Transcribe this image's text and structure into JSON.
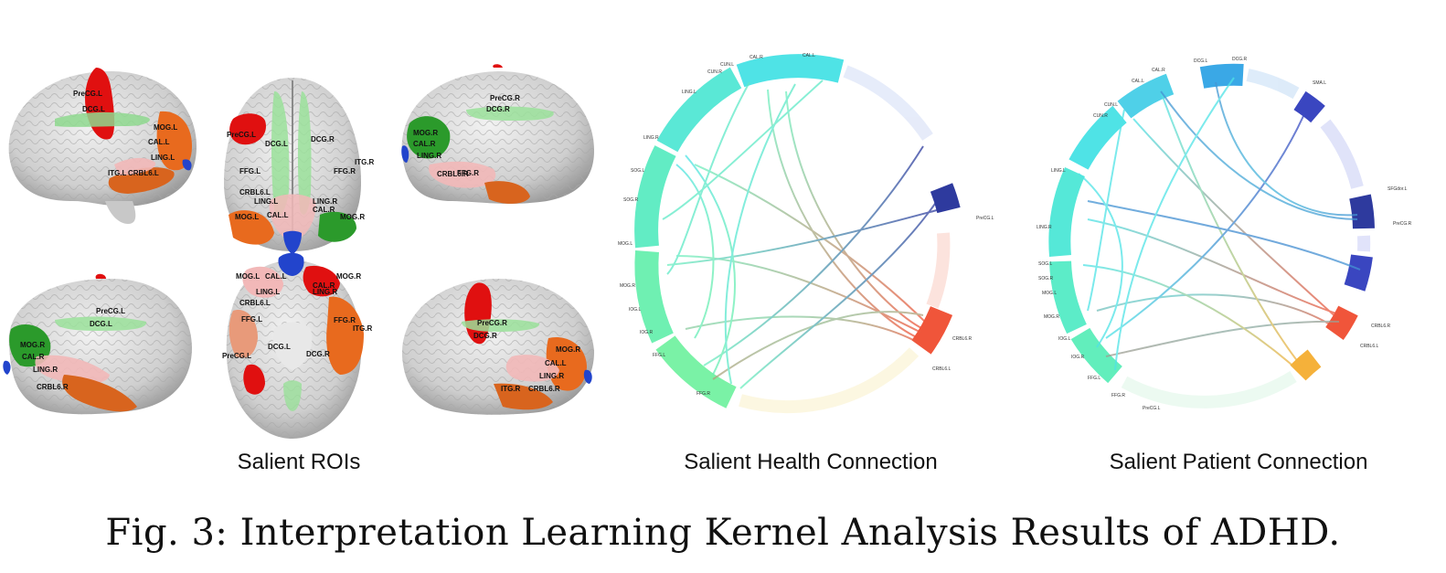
{
  "figure": {
    "panel_labels": {
      "rois": "Salient ROIs",
      "health": "Salient Health Connection",
      "patient": "Salient Patient Connection"
    },
    "caption": "Fig. 3: Interpretation Learning Kernel Analysis Results of ADHD."
  },
  "brain_views": [
    {
      "view": "left-lateral-top",
      "rois": [
        "PreCG.L",
        "DCG.L",
        "MOG.L",
        "CAL.L",
        "LING.L",
        "ITG.L",
        "CRBL6.L"
      ]
    },
    {
      "view": "superior",
      "rois": [
        "PreCG.L",
        "DCG.L",
        "DCG.R",
        "ITG.R",
        "FFG.L",
        "FFG.R",
        "CRBL6.L",
        "LING.L",
        "LING.R",
        "CAL.R",
        "MOG.L",
        "CAL.L",
        "MOG.R"
      ]
    },
    {
      "view": "right-medial-top",
      "rois": [
        "PreCG.R",
        "DCG.R",
        "MOG.R",
        "CAL.R",
        "LING.R",
        "CRBL6.R",
        "FFG.R"
      ]
    },
    {
      "view": "left-medial-bottom",
      "rois": [
        "PreCG.L",
        "DCG.L",
        "MOG.R",
        "CAL.R",
        "LING.R",
        "CRBL6.R"
      ]
    },
    {
      "view": "inferior",
      "rois": [
        "MOG.L",
        "CAL.L",
        "MOG.R",
        "CAL.R",
        "LING.L",
        "LING.R",
        "CRBL6.L",
        "FFG.L",
        "FFG.R",
        "ITG.R",
        "DCG.L",
        "DCG.R",
        "PreCG.L"
      ]
    },
    {
      "view": "right-lateral-bottom",
      "rois": [
        "PreCG.R",
        "DCG.R",
        "MOG.R",
        "CAL.L",
        "LING.R",
        "ITG.R",
        "CRBL6.R"
      ]
    }
  ],
  "chord_health": {
    "labels": [
      "CAL.L",
      "CAL.R",
      "CUN.L",
      "CUN.R",
      "LING.L",
      "LING.R",
      "SOG.L",
      "SOG.R",
      "MOG.L",
      "MOG.R",
      "IOG.L",
      "IOG.R",
      "FFG.L",
      "FFG.R",
      "PreCG.L",
      "CRBL6.R",
      "CRBL6.L"
    ],
    "colors": {
      "cyan": "#4fe3e6",
      "green": "#6ff0a8",
      "blue": "#2e3a9e",
      "red": "#f0553a",
      "pale": "#f7e7a8"
    }
  },
  "chord_patient": {
    "labels": [
      "DCG.L",
      "DCG.R",
      "CAL.L",
      "CAL.R",
      "CUN.L",
      "CUN.R",
      "LING.L",
      "LING.R",
      "SOG.L",
      "SOG.R",
      "MOG.L",
      "MOG.R",
      "IOG.L",
      "IOG.R",
      "FFG.L",
      "FFG.R",
      "PreCG.L",
      "PreCG.R",
      "CRBL6.R",
      "CRBL6.L",
      "SFGdor.L",
      "SMA.L"
    ],
    "colors": {
      "cyan": "#4fe3e6",
      "blue": "#3a46c0",
      "lightblue": "#3aa8e6",
      "red": "#f0553a",
      "orange": "#f5b13a"
    }
  }
}
